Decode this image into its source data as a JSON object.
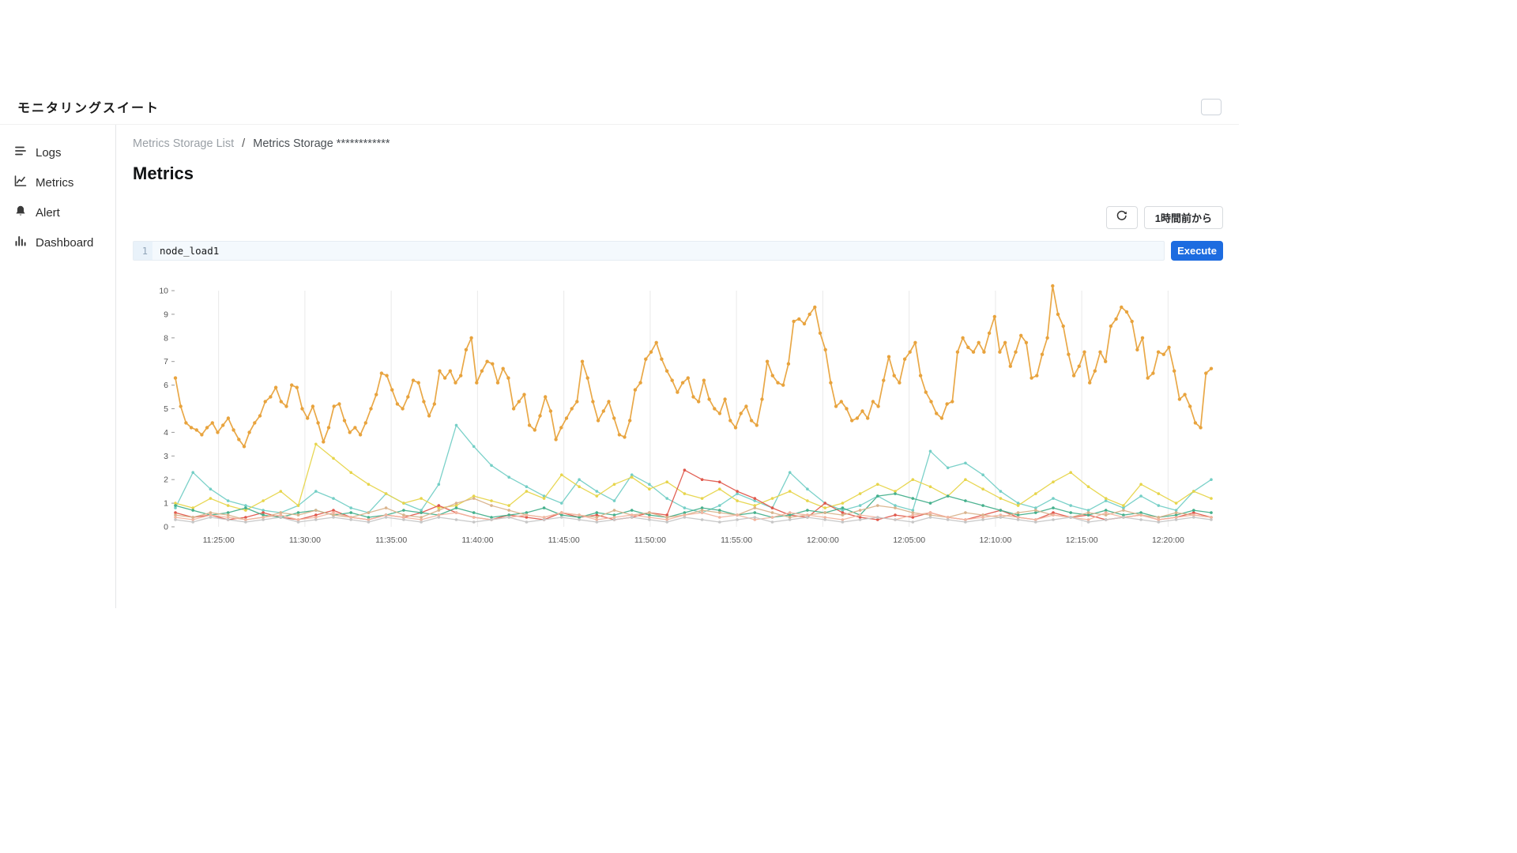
{
  "app": {
    "title": "モニタリングスイート"
  },
  "sidebar": {
    "items": [
      {
        "label": "Logs",
        "icon": "logs-icon"
      },
      {
        "label": "Metrics",
        "icon": "metrics-icon"
      },
      {
        "label": "Alert",
        "icon": "alert-icon"
      },
      {
        "label": "Dashboard",
        "icon": "dashboard-icon"
      }
    ]
  },
  "breadcrumb": {
    "parent": "Metrics Storage List",
    "separator": "/",
    "current": "Metrics Storage ************"
  },
  "page": {
    "title": "Metrics"
  },
  "toolbar": {
    "refresh_icon": "refresh-icon",
    "time_range_label": "1時間前から"
  },
  "query": {
    "line_number": "1",
    "value": "node_load1",
    "execute_label": "Execute"
  },
  "colors": {
    "accent": "#1d6ce0",
    "main_series": "#e8a33d",
    "grid": "#e9e9e9",
    "axis_text": "#555555"
  },
  "chart_data": {
    "type": "line",
    "title": "",
    "xlabel": "",
    "ylabel": "",
    "ylim": [
      0,
      10
    ],
    "yticks": [
      0,
      1,
      2,
      3,
      4,
      5,
      6,
      7,
      8,
      9,
      10
    ],
    "x_range": [
      "11:22:30",
      "12:22:30"
    ],
    "xtick_labels": [
      "11:25:00",
      "11:30:00",
      "11:35:00",
      "11:40:00",
      "11:45:00",
      "11:50:00",
      "11:55:00",
      "12:00:00",
      "12:05:00",
      "12:10:00",
      "12:15:00",
      "12:20:00"
    ],
    "grid": "vertical",
    "legend": "none",
    "series": [
      {
        "name": "series-2",
        "color": "#74cfc6",
        "values": [
          0.8,
          2.3,
          1.6,
          1.1,
          0.9,
          0.7,
          0.6,
          0.9,
          1.5,
          1.2,
          0.8,
          0.6,
          1.4,
          1.0,
          0.7,
          1.8,
          4.3,
          3.4,
          2.6,
          2.1,
          1.7,
          1.3,
          1.0,
          2.0,
          1.5,
          1.1,
          2.2,
          1.8,
          1.2,
          0.8,
          0.6,
          0.9,
          1.4,
          1.1,
          0.8,
          2.3,
          1.6,
          1.0,
          0.7,
          0.9,
          1.3,
          0.9,
          0.7,
          3.2,
          2.5,
          2.7,
          2.2,
          1.5,
          1.0,
          0.8,
          1.2,
          0.9,
          0.7,
          1.1,
          0.8,
          1.3,
          0.9,
          0.7,
          1.5,
          2.0
        ]
      },
      {
        "name": "series-3",
        "color": "#e7d54b",
        "values": [
          1.0,
          0.8,
          1.2,
          0.9,
          0.7,
          1.1,
          1.5,
          0.9,
          3.5,
          2.9,
          2.3,
          1.8,
          1.4,
          1.0,
          1.2,
          0.8,
          0.9,
          1.3,
          1.1,
          0.9,
          1.5,
          1.2,
          2.2,
          1.7,
          1.3,
          1.8,
          2.1,
          1.6,
          1.9,
          1.4,
          1.2,
          1.6,
          1.1,
          0.9,
          1.2,
          1.5,
          1.1,
          0.8,
          1.0,
          1.4,
          1.8,
          1.5,
          2.0,
          1.7,
          1.3,
          2.0,
          1.6,
          1.2,
          0.9,
          1.4,
          1.9,
          2.3,
          1.7,
          1.2,
          0.9,
          1.8,
          1.4,
          1.0,
          1.5,
          1.2
        ]
      },
      {
        "name": "series-4",
        "color": "#e0584c",
        "values": [
          0.6,
          0.4,
          0.5,
          0.3,
          0.4,
          0.6,
          0.4,
          0.3,
          0.5,
          0.7,
          0.4,
          0.3,
          0.5,
          0.4,
          0.6,
          0.9,
          0.6,
          0.4,
          0.3,
          0.5,
          0.4,
          0.3,
          0.6,
          0.4,
          0.5,
          0.3,
          0.4,
          0.6,
          0.5,
          2.4,
          2.0,
          1.9,
          1.5,
          1.2,
          0.8,
          0.5,
          0.4,
          1.0,
          0.6,
          0.4,
          0.3,
          0.5,
          0.4,
          0.6,
          0.4,
          0.3,
          0.5,
          0.7,
          0.4,
          0.3,
          0.6,
          0.4,
          0.5,
          0.3,
          0.4,
          0.5,
          0.3,
          0.4,
          0.6,
          0.4
        ]
      },
      {
        "name": "series-5",
        "color": "#45b08c",
        "values": [
          0.9,
          0.7,
          0.5,
          0.6,
          0.8,
          0.5,
          0.4,
          0.6,
          0.7,
          0.5,
          0.6,
          0.4,
          0.5,
          0.7,
          0.6,
          0.5,
          0.8,
          0.6,
          0.4,
          0.5,
          0.6,
          0.8,
          0.5,
          0.4,
          0.6,
          0.5,
          0.7,
          0.5,
          0.4,
          0.6,
          0.8,
          0.7,
          0.5,
          0.6,
          0.4,
          0.5,
          0.7,
          0.6,
          0.8,
          0.5,
          1.3,
          1.4,
          1.2,
          1.0,
          1.3,
          1.1,
          0.9,
          0.7,
          0.5,
          0.6,
          0.8,
          0.6,
          0.5,
          0.7,
          0.5,
          0.6,
          0.4,
          0.5,
          0.7,
          0.6
        ]
      },
      {
        "name": "series-6",
        "color": "#d9b38c",
        "values": [
          0.5,
          0.4,
          0.6,
          0.5,
          0.3,
          0.4,
          0.6,
          0.5,
          0.7,
          0.5,
          0.4,
          0.6,
          0.8,
          0.5,
          0.4,
          0.7,
          1.0,
          1.2,
          0.9,
          0.7,
          0.5,
          0.4,
          0.6,
          0.5,
          0.4,
          0.7,
          0.5,
          0.6,
          0.4,
          0.5,
          0.7,
          0.6,
          0.5,
          0.8,
          0.6,
          0.4,
          0.5,
          0.6,
          0.5,
          0.7,
          0.9,
          0.8,
          0.6,
          0.5,
          0.4,
          0.6,
          0.5,
          0.4,
          0.6,
          0.7,
          0.5,
          0.4,
          0.6,
          0.5,
          0.7,
          0.5,
          0.4,
          0.6,
          0.5,
          0.4
        ]
      },
      {
        "name": "series-7",
        "color": "#f2b5a0",
        "values": [
          0.4,
          0.3,
          0.5,
          0.4,
          0.3,
          0.4,
          0.5,
          0.3,
          0.4,
          0.6,
          0.4,
          0.3,
          0.5,
          0.4,
          0.3,
          0.5,
          0.6,
          0.4,
          0.3,
          0.4,
          0.5,
          0.4,
          0.6,
          0.5,
          0.3,
          0.4,
          0.5,
          0.4,
          0.3,
          0.5,
          0.6,
          0.4,
          0.5,
          0.3,
          0.4,
          0.6,
          0.5,
          0.4,
          0.3,
          0.5,
          0.4,
          0.3,
          0.5,
          0.6,
          0.4,
          0.3,
          0.4,
          0.5,
          0.4,
          0.3,
          0.5,
          0.4,
          0.3,
          0.6,
          0.4,
          0.5,
          0.3,
          0.4,
          0.5,
          0.4
        ]
      },
      {
        "name": "series-8",
        "color": "#c6c6c6",
        "values": [
          0.3,
          0.2,
          0.4,
          0.3,
          0.2,
          0.3,
          0.4,
          0.2,
          0.3,
          0.4,
          0.3,
          0.2,
          0.4,
          0.3,
          0.2,
          0.4,
          0.3,
          0.2,
          0.3,
          0.4,
          0.2,
          0.3,
          0.4,
          0.3,
          0.2,
          0.3,
          0.4,
          0.3,
          0.2,
          0.4,
          0.3,
          0.2,
          0.3,
          0.4,
          0.2,
          0.3,
          0.4,
          0.3,
          0.2,
          0.3,
          0.4,
          0.3,
          0.2,
          0.4,
          0.3,
          0.2,
          0.3,
          0.4,
          0.3,
          0.2,
          0.3,
          0.4,
          0.2,
          0.3,
          0.4,
          0.3,
          0.2,
          0.3,
          0.4,
          0.3
        ]
      },
      {
        "name": "series-1-main",
        "color": "#e8a33d",
        "values": [
          6.3,
          5.1,
          4.4,
          4.2,
          4.1,
          3.9,
          4.2,
          4.4,
          4.0,
          4.3,
          4.6,
          4.1,
          3.7,
          3.4,
          4.0,
          4.4,
          4.7,
          5.3,
          5.5,
          5.9,
          5.3,
          5.1,
          6.0,
          5.9,
          5.0,
          4.6,
          5.1,
          4.4,
          3.6,
          4.2,
          5.1,
          5.2,
          4.5,
          4.0,
          4.2,
          3.9,
          4.4,
          5.0,
          5.6,
          6.5,
          6.4,
          5.8,
          5.2,
          5.0,
          5.5,
          6.2,
          6.1,
          5.3,
          4.7,
          5.2,
          6.6,
          6.3,
          6.6,
          6.1,
          6.4,
          7.5,
          8.0,
          6.1,
          6.6,
          7.0,
          6.9,
          6.1,
          6.7,
          6.3,
          5.0,
          5.3,
          5.6,
          4.3,
          4.1,
          4.7,
          5.5,
          4.9,
          3.7,
          4.2,
          4.6,
          5.0,
          5.3,
          7.0,
          6.3,
          5.3,
          4.5,
          4.9,
          5.3,
          4.6,
          3.9,
          3.8,
          4.5,
          5.8,
          6.1,
          7.1,
          7.4,
          7.8,
          7.1,
          6.6,
          6.2,
          5.7,
          6.1,
          6.3,
          5.5,
          5.3,
          6.2,
          5.4,
          5.0,
          4.8,
          5.4,
          4.5,
          4.2,
          4.8,
          5.1,
          4.5,
          4.3,
          5.4,
          7.0,
          6.4,
          6.1,
          6.0,
          6.9,
          8.7,
          8.8,
          8.6,
          9.0,
          9.3,
          8.2,
          7.5,
          6.1,
          5.1,
          5.3,
          5.0,
          4.5,
          4.6,
          4.9,
          4.6,
          5.3,
          5.1,
          6.2,
          7.2,
          6.4,
          6.1,
          7.1,
          7.4,
          7.8,
          6.4,
          5.7,
          5.3,
          4.8,
          4.6,
          5.2,
          5.3,
          7.4,
          8.0,
          7.6,
          7.4,
          7.8,
          7.4,
          8.2,
          8.9,
          7.4,
          7.8,
          6.8,
          7.4,
          8.1,
          7.8,
          6.3,
          6.4,
          7.3,
          8.0,
          10.2,
          9.0,
          8.5,
          7.3,
          6.4,
          6.8,
          7.4,
          6.1,
          6.6,
          7.4,
          7.0,
          8.5,
          8.8,
          9.3,
          9.1,
          8.7,
          7.5,
          8.0,
          6.3,
          6.5,
          7.4,
          7.3,
          7.6,
          6.6,
          5.4,
          5.6,
          5.1,
          4.4,
          4.2,
          6.5,
          6.7
        ]
      }
    ]
  }
}
